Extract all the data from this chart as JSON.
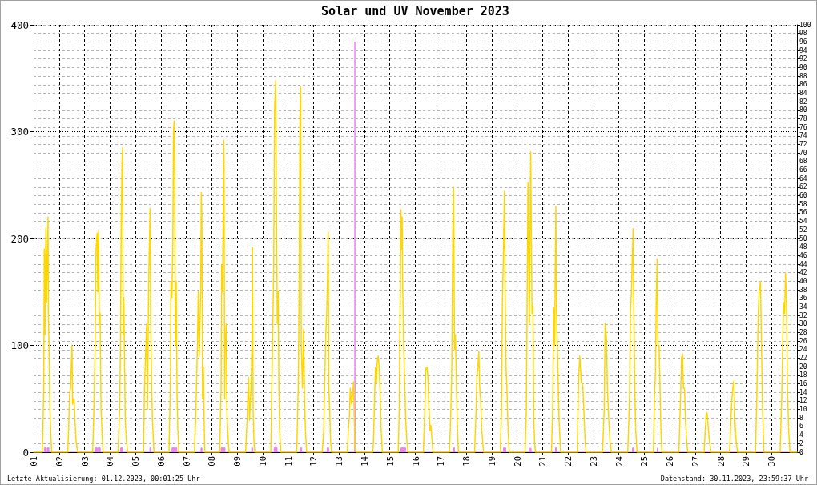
{
  "chart_data": {
    "type": "line",
    "title": "Solar und UV November 2023",
    "annotations": [
      "Letzte Aktualisierung: 01.12.2023, 00:01:25 Uhr",
      "Datenstand: 30.11.2023, 23:59:37 Uhr"
    ],
    "xlim": [
      "2023-11-01",
      "2023-12-01"
    ],
    "xticks": [
      {
        "value": "2023-11-01",
        "label": "01"
      },
      {
        "value": "2023-11-02",
        "label": "02"
      },
      {
        "value": "2023-11-03",
        "label": "03"
      },
      {
        "value": "2023-11-04",
        "label": "04"
      },
      {
        "value": "2023-11-05",
        "label": "05"
      },
      {
        "value": "2023-11-06",
        "label": "06"
      },
      {
        "value": "2023-11-07",
        "label": "07"
      },
      {
        "value": "2023-11-08",
        "label": "08"
      },
      {
        "value": "2023-11-09",
        "label": "09"
      },
      {
        "value": "2023-11-10",
        "label": "10"
      },
      {
        "value": "2023-11-11",
        "label": "11"
      },
      {
        "value": "2023-11-12",
        "label": "12"
      },
      {
        "value": "2023-11-13",
        "label": "13"
      },
      {
        "value": "2023-11-14",
        "label": "14"
      },
      {
        "value": "2023-11-15",
        "label": "15"
      },
      {
        "value": "2023-11-16",
        "label": "16"
      },
      {
        "value": "2023-11-17",
        "label": "17"
      },
      {
        "value": "2023-11-18",
        "label": "18"
      },
      {
        "value": "2023-11-19",
        "label": "19"
      },
      {
        "value": "2023-11-20",
        "label": "20"
      },
      {
        "value": "2023-11-21",
        "label": "21"
      },
      {
        "value": "2023-11-22",
        "label": "22"
      },
      {
        "value": "2023-11-23",
        "label": "23"
      },
      {
        "value": "2023-11-24",
        "label": "24"
      },
      {
        "value": "2023-11-25",
        "label": "25"
      },
      {
        "value": "2023-11-26",
        "label": "26"
      },
      {
        "value": "2023-11-27",
        "label": "27"
      },
      {
        "value": "2023-11-28",
        "label": "28"
      },
      {
        "value": "2023-11-29",
        "label": "29"
      },
      {
        "value": "2023-11-30",
        "label": "30"
      }
    ],
    "ylim": [
      0,
      400
    ],
    "yticks": [
      0,
      100,
      200,
      300,
      400
    ],
    "y2lim": [
      0,
      100
    ],
    "y2ticks": [
      0,
      2,
      4,
      6,
      8,
      10,
      12,
      14,
      16,
      18,
      20,
      22,
      24,
      26,
      28,
      30,
      32,
      34,
      36,
      38,
      40,
      42,
      44,
      46,
      48,
      50,
      52,
      54,
      56,
      58,
      60,
      62,
      64,
      66,
      68,
      70,
      72,
      74,
      76,
      78,
      80,
      82,
      84,
      86,
      88,
      90,
      92,
      94,
      96,
      98,
      100
    ],
    "grid": true,
    "series": [
      {
        "type": "area",
        "axis": "y2",
        "color": "#ee82ee",
        "x": [
          "2023-11-01T00:00",
          "2023-11-01T10:05",
          "2023-11-01T10:05",
          "2023-11-01T11:45",
          "2023-11-01T11:45",
          "2023-11-01T12:45",
          "2023-11-01T12:45",
          "2023-11-01T14:25",
          "2023-11-01T14:25",
          "2023-11-03T10:20",
          "2023-11-03T10:20",
          "2023-11-03T12:00",
          "2023-11-03T12:00",
          "2023-11-03T12:40",
          "2023-11-03T12:40",
          "2023-11-03T14:50",
          "2023-11-03T14:50",
          "2023-11-04T10:00",
          "2023-11-04T10:00",
          "2023-11-04T12:00",
          "2023-11-04T12:00",
          "2023-11-05T13:40",
          "2023-11-05T13:40",
          "2023-11-05T14:25",
          "2023-11-05T14:25",
          "2023-11-06T10:30",
          "2023-11-06T10:30",
          "2023-11-06T15:00",
          "2023-11-06T15:00",
          "2023-11-07T13:50",
          "2023-11-07T13:50",
          "2023-11-07T14:50",
          "2023-11-07T14:50",
          "2023-11-08T08:50",
          "2023-11-08T08:50",
          "2023-11-08T10:30",
          "2023-11-08T10:30",
          "2023-11-08T10:50",
          "2023-11-08T10:50",
          "2023-11-08T12:30",
          "2023-11-08T12:30",
          "2023-11-09T13:40",
          "2023-11-09T13:40",
          "2023-11-09T14:40",
          "2023-11-09T14:40",
          "2023-11-10T10:50",
          "2023-11-10T10:50",
          "2023-11-10T12:20",
          "2023-11-10T12:30",
          "2023-11-10T12:40",
          "2023-11-10T13:40",
          "2023-11-10T13:40",
          "2023-11-11T11:30",
          "2023-11-11T11:30",
          "2023-11-11T12:50",
          "2023-11-11T12:50",
          "2023-11-12T12:50",
          "2023-11-12T12:50",
          "2023-11-12T14:15",
          "2023-11-12T14:15",
          "2023-11-13T14:55",
          "2023-11-13T15:00",
          "2023-11-13T15:05",
          "2023-11-15T10:20",
          "2023-11-15T10:20",
          "2023-11-15T14:50",
          "2023-11-15T14:50",
          "2023-11-17T11:45",
          "2023-11-17T11:45",
          "2023-11-17T13:00",
          "2023-11-17T13:00",
          "2023-11-19T11:10",
          "2023-11-19T11:10",
          "2023-11-19T13:20",
          "2023-11-19T13:20",
          "2023-11-20T11:40",
          "2023-11-20T11:40",
          "2023-11-20T12:00",
          "2023-11-20T12:00",
          "2023-11-20T13:00",
          "2023-11-20T13:00",
          "2023-11-20T13:20",
          "2023-11-20T13:20",
          "2023-11-21T12:10",
          "2023-11-21T12:10",
          "2023-11-21T13:25",
          "2023-11-21T13:25",
          "2023-11-24T12:50",
          "2023-11-24T12:50",
          "2023-11-24T14:20",
          "2023-11-24T14:20",
          "2023-11-25T12:10",
          "2023-11-25T12:10",
          "2023-11-25T12:40",
          "2023-11-25T12:40",
          "2023-11-30T23:55"
        ],
        "values": [
          0,
          0,
          1,
          1,
          0,
          0,
          1,
          1,
          0,
          0,
          1,
          1,
          0,
          0,
          1,
          1,
          0,
          0,
          1,
          1,
          0,
          0,
          1,
          1,
          0,
          0,
          1,
          1,
          0,
          0,
          1,
          1,
          0,
          0,
          1,
          1,
          0,
          0,
          1,
          1,
          0,
          0,
          1,
          1,
          0,
          0,
          1,
          1,
          2,
          1,
          1,
          0,
          0,
          1,
          1,
          0,
          0,
          1,
          1,
          0,
          0,
          96,
          0,
          0,
          1,
          1,
          0,
          0,
          1,
          1,
          0,
          0,
          1,
          1,
          0,
          0,
          1,
          1,
          0,
          0,
          1,
          1,
          0,
          0,
          1,
          1,
          0,
          0,
          1,
          1,
          0,
          0,
          1,
          1,
          0,
          0
        ]
      },
      {
        "color": "#ffd700",
        "x": [
          "2023-11-01T00:00",
          "2023-11-01T08:00",
          "2023-11-01T08:40",
          "2023-11-01T09:30",
          "2023-11-01T10:05",
          "2023-11-01T10:40",
          "2023-11-01T11:35",
          "2023-11-01T12:10",
          "2023-11-01T13:35",
          "2023-11-01T13:55",
          "2023-11-01T14:30",
          "2023-11-01T15:20",
          "2023-11-01T16:15",
          "2023-11-01T17:05",
          "2023-11-02T08:10",
          "2023-11-02T09:05",
          "2023-11-02T09:55",
          "2023-11-02T10:50",
          "2023-11-02T12:10",
          "2023-11-02T12:45",
          "2023-11-02T14:10",
          "2023-11-02T15:00",
          "2023-11-02T16:05",
          "2023-11-02T17:30",
          "2023-11-03T07:40",
          "2023-11-03T09:00",
          "2023-11-03T09:55",
          "2023-11-03T10:50",
          "2023-11-03T11:55",
          "2023-11-03T12:30",
          "2023-11-03T13:20",
          "2023-11-03T13:55",
          "2023-11-03T14:40",
          "2023-11-03T15:35",
          "2023-11-03T16:40",
          "2023-11-03T17:30",
          "2023-11-04T07:40",
          "2023-11-04T09:05",
          "2023-11-04T09:55",
          "2023-11-04T10:30",
          "2023-11-04T11:20",
          "2023-11-04T11:55",
          "2023-11-04T12:30",
          "2023-11-04T13:00",
          "2023-11-04T13:35",
          "2023-11-04T14:25",
          "2023-11-04T15:35",
          "2023-11-04T16:45",
          "2023-11-05T07:40",
          "2023-11-05T08:30",
          "2023-11-05T09:35",
          "2023-11-05T10:30",
          "2023-11-05T11:20",
          "2023-11-05T12:30",
          "2023-11-05T13:50",
          "2023-11-05T14:25",
          "2023-11-05T15:20",
          "2023-11-05T16:05",
          "2023-11-05T17:30",
          "2023-11-06T07:40",
          "2023-11-06T09:05",
          "2023-11-06T09:35",
          "2023-11-06T10:30",
          "2023-11-06T11:20",
          "2023-11-06T11:55",
          "2023-11-06T12:30",
          "2023-11-06T13:00",
          "2023-11-06T13:35",
          "2023-11-06T14:25",
          "2023-11-06T15:20",
          "2023-11-06T16:05",
          "2023-11-06T17:00",
          "2023-11-07T07:40",
          "2023-11-07T09:05",
          "2023-11-07T10:30",
          "2023-11-07T11:20",
          "2023-11-07T12:10",
          "2023-11-07T13:35",
          "2023-11-07T14:10",
          "2023-11-07T14:40",
          "2023-11-07T15:20",
          "2023-11-07T16:05",
          "2023-11-07T17:00",
          "2023-11-07T17:30",
          "2023-11-08T07:30",
          "2023-11-08T08:50",
          "2023-11-08T09:20",
          "2023-11-08T10:10",
          "2023-11-08T11:20",
          "2023-11-08T11:35",
          "2023-11-08T12:10",
          "2023-11-08T12:40",
          "2023-11-08T13:35",
          "2023-11-08T14:25",
          "2023-11-08T15:35",
          "2023-11-08T16:25",
          "2023-11-09T07:55",
          "2023-11-09T09:20",
          "2023-11-09T10:45",
          "2023-11-09T11:35",
          "2023-11-09T13:00",
          "2023-11-09T13:55",
          "2023-11-09T14:25",
          "2023-11-09T15:00",
          "2023-11-09T15:50",
          "2023-11-09T16:40",
          "2023-11-10T07:40",
          "2023-11-10T08:50",
          "2023-11-10T10:25",
          "2023-11-10T11:15",
          "2023-11-10T12:20",
          "2023-11-10T12:55",
          "2023-11-10T13:50",
          "2023-11-10T14:40",
          "2023-11-10T15:20",
          "2023-11-10T16:05",
          "2023-11-10T17:10",
          "2023-11-11T08:10",
          "2023-11-11T09:35",
          "2023-11-11T10:25",
          "2023-11-11T11:15",
          "2023-11-11T11:55",
          "2023-11-11T12:25",
          "2023-11-11T13:35",
          "2023-11-11T14:40",
          "2023-11-11T15:30",
          "2023-11-11T16:25",
          "2023-11-11T17:30",
          "2023-11-12T08:10",
          "2023-11-12T09:35",
          "2023-11-12T10:25",
          "2023-11-12T11:35",
          "2023-11-12T12:25",
          "2023-11-12T13:20",
          "2023-11-12T13:50",
          "2023-11-12T14:25",
          "2023-11-12T15:15",
          "2023-11-12T16:05",
          "2023-11-12T17:10",
          "2023-11-13T07:55",
          "2023-11-13T08:50",
          "2023-11-13T09:55",
          "2023-11-13T10:40",
          "2023-11-13T11:55",
          "2023-11-13T13:00",
          "2023-11-13T13:50",
          "2023-11-13T14:25",
          "2023-11-13T15:10",
          "2023-11-13T16:25",
          "2023-11-14T07:55",
          "2023-11-14T08:30",
          "2023-11-14T09:35",
          "2023-11-14T10:25",
          "2023-11-14T11:20",
          "2023-11-14T12:05",
          "2023-11-14T13:00",
          "2023-11-14T13:50",
          "2023-11-14T14:40",
          "2023-11-14T15:50",
          "2023-11-14T16:55",
          "2023-11-15T07:55",
          "2023-11-15T08:50",
          "2023-11-15T09:20",
          "2023-11-15T09:55",
          "2023-11-15T10:25",
          "2023-11-15T11:00",
          "2023-11-15T11:35",
          "2023-11-15T12:05",
          "2023-11-15T13:00",
          "2023-11-15T13:50",
          "2023-11-15T15:00",
          "2023-11-15T16:05",
          "2023-11-15T17:10",
          "2023-11-16T07:35",
          "2023-11-16T09:00",
          "2023-11-16T09:55",
          "2023-11-16T11:00",
          "2023-11-16T11:55",
          "2023-11-16T12:45",
          "2023-11-16T13:50",
          "2023-11-16T14:40",
          "2023-11-16T15:30",
          "2023-11-16T16:40",
          "2023-11-17T08:10",
          "2023-11-17T09:35",
          "2023-11-17T10:25",
          "2023-11-17T11:20",
          "2023-11-17T12:05",
          "2023-11-17T13:00",
          "2023-11-17T13:50",
          "2023-11-17T14:40",
          "2023-11-17T15:30",
          "2023-11-17T16:40",
          "2023-11-18T07:55",
          "2023-11-18T09:20",
          "2023-11-18T10:10",
          "2023-11-18T11:00",
          "2023-11-18T11:55",
          "2023-11-18T12:45",
          "2023-11-18T13:35",
          "2023-11-18T14:40",
          "2023-11-18T16:25",
          "2023-11-19T08:10",
          "2023-11-19T09:20",
          "2023-11-19T10:10",
          "2023-11-19T11:00",
          "2023-11-19T12:05",
          "2023-11-19T12:40",
          "2023-11-19T13:35",
          "2023-11-19T14:25",
          "2023-11-19T15:30",
          "2023-11-19T16:40",
          "2023-11-20T07:30",
          "2023-11-20T08:45",
          "2023-11-20T10:15",
          "2023-11-20T11:35",
          "2023-11-20T12:50",
          "2023-11-20T14:05",
          "2023-11-20T15:00",
          "2023-11-20T15:40",
          "2023-11-20T16:30",
          "2023-11-20T17:20",
          "2023-11-21T08:25",
          "2023-11-21T09:35",
          "2023-11-21T10:30",
          "2023-11-21T11:25",
          "2023-11-21T12:35",
          "2023-11-21T13:10",
          "2023-11-21T13:50",
          "2023-11-21T14:25",
          "2023-11-21T15:35",
          "2023-11-21T17:05",
          "2023-11-22T08:45",
          "2023-11-22T10:00",
          "2023-11-22T11:10",
          "2023-11-22T12:30",
          "2023-11-22T14:00",
          "2023-11-22T15:00",
          "2023-11-22T16:10",
          "2023-11-22T17:10",
          "2023-11-23T08:35",
          "2023-11-23T10:10",
          "2023-11-23T11:05",
          "2023-11-23T12:20",
          "2023-11-23T13:15",
          "2023-11-23T14:30",
          "2023-11-23T15:40",
          "2023-11-23T16:55",
          "2023-11-24T08:25",
          "2023-11-24T10:00",
          "2023-11-24T10:55",
          "2023-11-24T11:50",
          "2023-11-24T13:25",
          "2023-11-24T14:00",
          "2023-11-24T15:00",
          "2023-11-24T15:55",
          "2023-11-24T17:10",
          "2023-11-25T08:35",
          "2023-11-25T09:30",
          "2023-11-25T10:30",
          "2023-11-25T11:05",
          "2023-11-25T12:00",
          "2023-11-25T12:55",
          "2023-11-25T13:55",
          "2023-11-25T14:50",
          "2023-11-25T15:40",
          "2023-11-25T16:35",
          "2023-11-26T08:35",
          "2023-11-26T10:10",
          "2023-11-26T11:05",
          "2023-11-26T12:00",
          "2023-11-26T12:55",
          "2023-11-26T13:55",
          "2023-11-26T14:50",
          "2023-11-26T16:00",
          "2023-11-26T16:55",
          "2023-11-27T08:25",
          "2023-11-27T09:25",
          "2023-11-27T10:20",
          "2023-11-27T11:10",
          "2023-11-27T12:10",
          "2023-11-27T13:25",
          "2023-11-27T15:00",
          "2023-11-28T08:25",
          "2023-11-28T09:40",
          "2023-11-28T10:35",
          "2023-11-28T11:30",
          "2023-11-28T12:30",
          "2023-11-28T13:25",
          "2023-11-28T14:40",
          "2023-11-28T15:55",
          "2023-11-29T08:50",
          "2023-11-29T10:05",
          "2023-11-29T11:25",
          "2023-11-29T12:20",
          "2023-11-29T13:35",
          "2023-11-29T14:30",
          "2023-11-29T15:30",
          "2023-11-29T16:45",
          "2023-11-30T08:05",
          "2023-11-30T09:35",
          "2023-11-30T10:30",
          "2023-11-30T11:25",
          "2023-11-30T12:20",
          "2023-11-30T13:10",
          "2023-11-30T14:05",
          "2023-11-30T15:00",
          "2023-11-30T16:10",
          "2023-11-30T17:25",
          "2023-11-30T23:55"
        ],
        "values": [
          0,
          0,
          15,
          60,
          190,
          110,
          210,
          140,
          220,
          130,
          100,
          40,
          15,
          0,
          0,
          25,
          55,
          60,
          100,
          45,
          50,
          30,
          10,
          0,
          0,
          45,
          95,
          190,
          205,
          150,
          207,
          120,
          130,
          40,
          15,
          0,
          0,
          40,
          100,
          200,
          270,
          285,
          110,
          145,
          100,
          30,
          10,
          0,
          0,
          60,
          90,
          120,
          40,
          160,
          228,
          120,
          60,
          30,
          0,
          0,
          70,
          160,
          145,
          200,
          300,
          310,
          270,
          100,
          160,
          50,
          20,
          0,
          0,
          40,
          100,
          150,
          90,
          150,
          243,
          220,
          50,
          80,
          20,
          0,
          0,
          60,
          175,
          150,
          292,
          270,
          50,
          100,
          120,
          35,
          10,
          0,
          0,
          30,
          70,
          30,
          60,
          100,
          192,
          40,
          10,
          0,
          0,
          70,
          170,
          320,
          348,
          240,
          120,
          151,
          60,
          20,
          0,
          0,
          60,
          150,
          320,
          342,
          100,
          60,
          115,
          50,
          20,
          0,
          0,
          20,
          60,
          110,
          130,
          170,
          206,
          60,
          40,
          10,
          0,
          0,
          20,
          35,
          60,
          45,
          55,
          66,
          30,
          5,
          0,
          0,
          10,
          50,
          80,
          65,
          85,
          90,
          80,
          60,
          20,
          0,
          0,
          40,
          100,
          150,
          227,
          190,
          220,
          160,
          100,
          70,
          30,
          10,
          0,
          0,
          40,
          78,
          80,
          70,
          45,
          20,
          25,
          15,
          0,
          0,
          40,
          80,
          200,
          248,
          96,
          110,
          70,
          30,
          0,
          0,
          40,
          70,
          80,
          94,
          60,
          50,
          20,
          0,
          0,
          40,
          140,
          180,
          244,
          150,
          80,
          60,
          20,
          0,
          0,
          40,
          252,
          120,
          281,
          130,
          137,
          33,
          10,
          0,
          0,
          40,
          135,
          100,
          230,
          134,
          105,
          80,
          30,
          0,
          0,
          70,
          90,
          66,
          62,
          38,
          10,
          0,
          0,
          40,
          121,
          105,
          60,
          30,
          10,
          0,
          0,
          50,
          131,
          150,
          209,
          145,
          60,
          20,
          0,
          0,
          50,
          75,
          130,
          181,
          100,
          100,
          60,
          20,
          0,
          0,
          50,
          88,
          92,
          60,
          60,
          30,
          10,
          0,
          0,
          20,
          35,
          37,
          25,
          10,
          0,
          0,
          30,
          50,
          60,
          67,
          30,
          10,
          0,
          0,
          50,
          130,
          150,
          160,
          100,
          40,
          0,
          0,
          50,
          100,
          140,
          130,
          168,
          141,
          60,
          20,
          0,
          0
        ]
      }
    ]
  }
}
